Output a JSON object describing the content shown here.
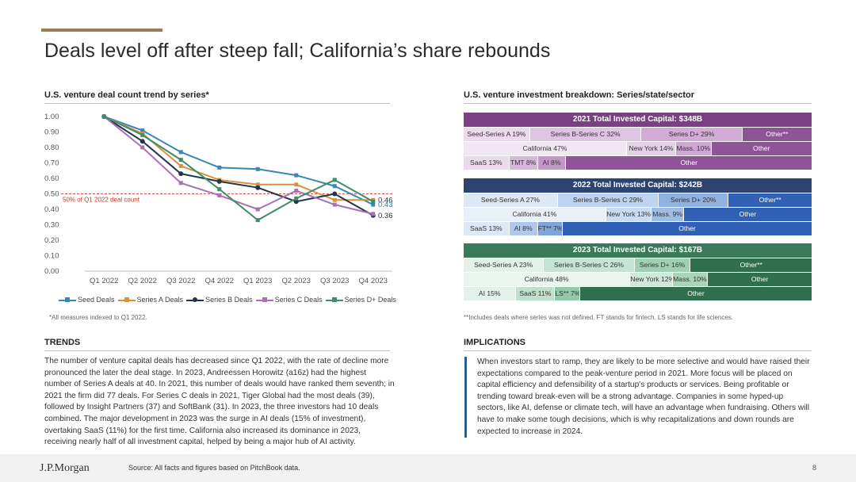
{
  "page": {
    "title": "Deals level off after steep fall; California’s share rebounds"
  },
  "left": {
    "chart_heading": "U.S. venture deal count trend by series*",
    "footnote": "*All measures indexed to Q1 2022.",
    "trends_heading": "TRENDS",
    "trends_text": "The number of venture capital deals has decreased since Q1 2022, with the rate of decline more pronounced the later the deal stage. In 2023, Andreessen Horowitz (a16z) had the highest number of Series A deals at 40. In 2021, this number of deals would have ranked them seventh; in 2021 the firm did 77 deals. For Series C deals in 2021, Tiger Global had the most deals (39), followed by Insight Partners (37) and SoftBank (31). In 2023, the three investors had 10 deals combined. The major development in 2023 was the surge in AI deals (15% of investment), overtaking SaaS (11%) for the first time. California also increased its dominance in 2023, receiving nearly half of all investment capital, helped by being a major hub of AI activity."
  },
  "right": {
    "heading": "U.S. venture investment breakdown: Series/state/sector",
    "footnote": "**Includes deals where series was not defined. FT stands for fintech. LS stands for life sciences.",
    "implications_heading": "IMPLICATIONS",
    "implications_text": "When investors start to ramp, they are likely to be more selective and would have raised their expectations compared to the peak-venture period in 2021. More focus will be placed on capital efficiency and defensibility of a startup's products or services. Being profitable or trending toward break-even will be a strong advantage. Companies in some hyped-up sectors, like AI, defense or climate tech, will have an advantage when fundraising. Others will have to make some tough decisions, which is why recapitalizations and down rounds are expected to increase in 2024.",
    "blocks": [
      {
        "header": "2021 Total Invested Capital: $348B",
        "header_color": "#7b3f84",
        "rows": [
          [
            {
              "label": "Seed-Series A 19%",
              "share": 19,
              "bg": "#ecd9ee",
              "fg": "#333333"
            },
            {
              "label": "Series B-Series C 32%",
              "share": 32,
              "bg": "#e0c3e4",
              "fg": "#333333"
            },
            {
              "label": "Series D+ 29%",
              "share": 29,
              "bg": "#d2abd7",
              "fg": "#333333"
            },
            {
              "label": "Other**",
              "share": 20,
              "bg": "#8e5497",
              "fg": "#ffffff"
            }
          ],
          [
            {
              "label": "California 47%",
              "share": 47,
              "bg": "#f3e6f4",
              "fg": "#333333"
            },
            {
              "label": "New York 14%",
              "share": 14,
              "bg": "#e6cfe9",
              "fg": "#333333"
            },
            {
              "label": "Mass. 10%",
              "share": 10,
              "bg": "#cfa6d4",
              "fg": "#333333"
            },
            {
              "label": "Other",
              "share": 29,
              "bg": "#8e5497",
              "fg": "#ffffff"
            }
          ],
          [
            {
              "label": "SaaS 13%",
              "share": 13,
              "bg": "#ecd9ee",
              "fg": "#333333"
            },
            {
              "label": "TMT 8%",
              "share": 8,
              "bg": "#d8b7dc",
              "fg": "#333333"
            },
            {
              "label": "AI 8%",
              "share": 8,
              "bg": "#c497ca",
              "fg": "#333333"
            },
            {
              "label": "Other",
              "share": 71,
              "bg": "#8e5497",
              "fg": "#ffffff"
            }
          ]
        ]
      },
      {
        "header": "2022 Total Invested Capital: $242B",
        "header_color": "#2e4470",
        "rows": [
          [
            {
              "label": "Seed-Series A 27%",
              "share": 27,
              "bg": "#dde8f6",
              "fg": "#333333"
            },
            {
              "label": "Series B-Series C 29%",
              "share": 29,
              "bg": "#bcd2ee",
              "fg": "#333333"
            },
            {
              "label": "Series D+ 20%",
              "share": 20,
              "bg": "#8fb2e0",
              "fg": "#333333"
            },
            {
              "label": "Other**",
              "share": 24,
              "bg": "#3061b5",
              "fg": "#ffffff"
            }
          ],
          [
            {
              "label": "California 41%",
              "share": 41,
              "bg": "#e8f0fa",
              "fg": "#333333"
            },
            {
              "label": "New York 13%",
              "share": 13,
              "bg": "#c9dbf2",
              "fg": "#333333"
            },
            {
              "label": "Mass. 9%",
              "share": 9,
              "bg": "#9ebde5",
              "fg": "#333333"
            },
            {
              "label": "Other",
              "share": 37,
              "bg": "#3061b5",
              "fg": "#ffffff"
            }
          ],
          [
            {
              "label": "SaaS 13%",
              "share": 13,
              "bg": "#dde8f6",
              "fg": "#333333"
            },
            {
              "label": "AI 8%",
              "share": 8,
              "bg": "#b0c9ea",
              "fg": "#333333"
            },
            {
              "label": "FT** 7%",
              "share": 7,
              "bg": "#7fa4da",
              "fg": "#333333"
            },
            {
              "label": "Other",
              "share": 72,
              "bg": "#3061b5",
              "fg": "#ffffff"
            }
          ]
        ]
      },
      {
        "header": "2023 Total Invested Capital: $167B",
        "header_color": "#3a7a5a",
        "rows": [
          [
            {
              "label": "Seed-Series A 23%",
              "share": 23,
              "bg": "#e3f1ea",
              "fg": "#333333"
            },
            {
              "label": "Series B-Series C 26%",
              "share": 26,
              "bg": "#c6e3d3",
              "fg": "#333333"
            },
            {
              "label": "Series D+ 16%",
              "share": 16,
              "bg": "#9fd0b5",
              "fg": "#333333"
            },
            {
              "label": "Other**",
              "share": 35,
              "bg": "#2f6e4e",
              "fg": "#ffffff"
            }
          ],
          [
            {
              "label": "California 48%",
              "share": 48,
              "bg": "#ebf5ef",
              "fg": "#333333"
            },
            {
              "label": "New York 12%",
              "share": 12,
              "bg": "#cfe8da",
              "fg": "#333333"
            },
            {
              "label": "Mass. 10%",
              "share": 10,
              "bg": "#a8d4bc",
              "fg": "#333333"
            },
            {
              "label": "Other",
              "share": 30,
              "bg": "#2f6e4e",
              "fg": "#ffffff"
            }
          ],
          [
            {
              "label": "AI 15%",
              "share": 15,
              "bg": "#e3f1ea",
              "fg": "#333333"
            },
            {
              "label": "SaaS 11%",
              "share": 11,
              "bg": "#bfe0cd",
              "fg": "#333333"
            },
            {
              "label": "LS** 7%",
              "share": 7,
              "bg": "#93c9ab",
              "fg": "#333333"
            },
            {
              "label": "Other",
              "share": 67,
              "bg": "#2f6e4e",
              "fg": "#ffffff"
            }
          ]
        ]
      }
    ]
  },
  "footer": {
    "logo": "J.P.Morgan",
    "source": "Source: All facts and figures based on PitchBook data.",
    "page_number": "8"
  },
  "chart_data": {
    "type": "line",
    "categories": [
      "Q1 2022",
      "Q2 2022",
      "Q3 2022",
      "Q4 2022",
      "Q1 2023",
      "Q2 2023",
      "Q3 2023",
      "Q4 2023"
    ],
    "ylim": [
      0,
      1
    ],
    "yticks": [
      "0.00",
      "0.10",
      "0.20",
      "0.30",
      "0.40",
      "0.50",
      "0.60",
      "0.70",
      "0.80",
      "0.90",
      "1.00"
    ],
    "grid": false,
    "legend_position": "bottom",
    "reference_line": {
      "value": 0.5,
      "label": "50% of Q1 2022 deal count",
      "color": "#d9534f"
    },
    "end_labels": [
      {
        "text": "0.46",
        "value": 0.46,
        "color": "#333333"
      },
      {
        "text": "0.43",
        "value": 0.43,
        "color": "#2f7fa6"
      },
      {
        "text": "0.36",
        "value": 0.36,
        "color": "#333333"
      }
    ],
    "series": [
      {
        "name": "Seed Deals",
        "color": "#3a86b5",
        "marker": "square",
        "values": [
          1.0,
          0.91,
          0.77,
          0.67,
          0.66,
          0.62,
          0.55,
          0.43
        ]
      },
      {
        "name": "Series A Deals",
        "color": "#d9913a",
        "marker": "square",
        "values": [
          1.0,
          0.89,
          0.68,
          0.59,
          0.56,
          0.56,
          0.46,
          0.46
        ]
      },
      {
        "name": "Series B Deals",
        "color": "#24344d",
        "marker": "circle",
        "values": [
          1.0,
          0.84,
          0.63,
          0.58,
          0.54,
          0.45,
          0.5,
          0.36
        ]
      },
      {
        "name": "Series C Deals",
        "color": "#a871b4",
        "marker": "square",
        "values": [
          1.0,
          0.8,
          0.57,
          0.49,
          0.4,
          0.52,
          0.43,
          0.37
        ]
      },
      {
        "name": "Series D+ Deals",
        "color": "#3d8c6c",
        "marker": "square",
        "values": [
          1.0,
          0.88,
          0.72,
          0.53,
          0.33,
          0.47,
          0.59,
          0.45
        ]
      }
    ]
  }
}
